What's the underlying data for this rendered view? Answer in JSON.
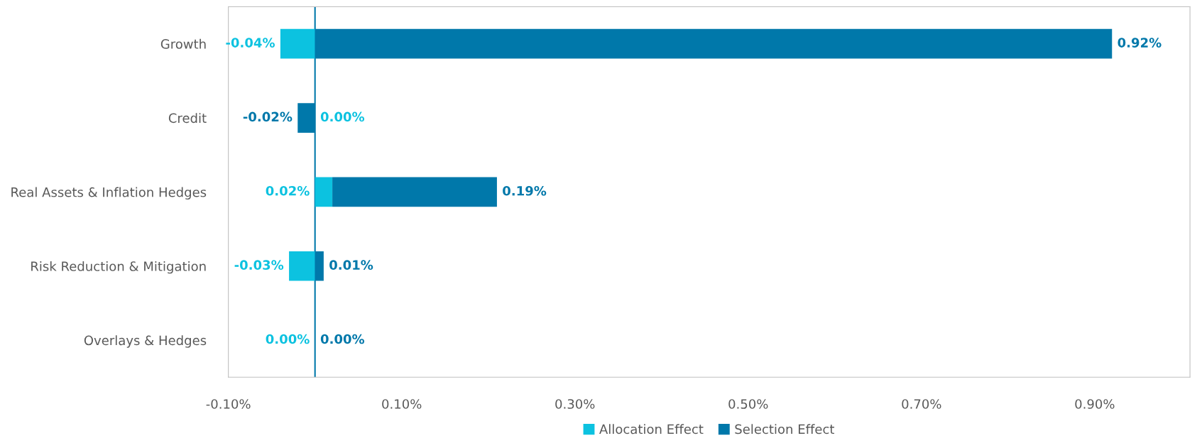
{
  "chart_data": {
    "type": "bar",
    "orientation": "horizontal",
    "stacked": true,
    "categories": [
      "Growth",
      "Credit",
      "Real Assets & Inflation Hedges",
      "Risk Reduction & Mitigation",
      "Overlays & Hedges"
    ],
    "series": [
      {
        "name": "Allocation Effect",
        "color": "#0cc2e0",
        "values": [
          -0.04,
          0.0,
          0.02,
          -0.03,
          0.0
        ],
        "value_labels": [
          "-0.04%",
          "0.00%",
          "0.02%",
          "-0.03%",
          "0.00%"
        ]
      },
      {
        "name": "Selection Effect",
        "color": "#0078aa",
        "values": [
          0.92,
          -0.02,
          0.19,
          0.01,
          0.0
        ],
        "value_labels": [
          "0.92%",
          "-0.02%",
          "0.19%",
          "0.01%",
          "0.00%"
        ]
      }
    ],
    "xlim": [
      -0.1,
      1.01
    ],
    "xticks": [
      {
        "value": -0.1,
        "label": "-0.10%"
      },
      {
        "value": 0.1,
        "label": "0.10%"
      },
      {
        "value": 0.3,
        "label": "0.30%"
      },
      {
        "value": 0.5,
        "label": "0.50%"
      },
      {
        "value": 0.7,
        "label": "0.70%"
      },
      {
        "value": 0.9,
        "label": "0.90%"
      }
    ],
    "ref_lines": [
      {
        "axis": "x",
        "value": 0,
        "color": "#0078aa"
      }
    ],
    "grid": false,
    "legend": "bottom"
  }
}
